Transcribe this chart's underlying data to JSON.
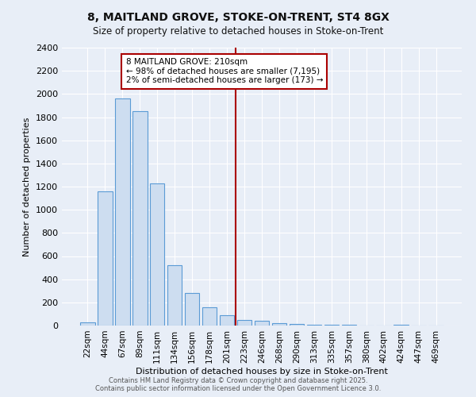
{
  "title1": "8, MAITLAND GROVE, STOKE-ON-TRENT, ST4 8GX",
  "title2": "Size of property relative to detached houses in Stoke-on-Trent",
  "xlabel": "Distribution of detached houses by size in Stoke-on-Trent",
  "ylabel": "Number of detached properties",
  "categories": [
    "22sqm",
    "44sqm",
    "67sqm",
    "89sqm",
    "111sqm",
    "134sqm",
    "156sqm",
    "178sqm",
    "201sqm",
    "223sqm",
    "246sqm",
    "268sqm",
    "290sqm",
    "313sqm",
    "335sqm",
    "357sqm",
    "380sqm",
    "402sqm",
    "424sqm",
    "447sqm",
    "469sqm"
  ],
  "values": [
    25,
    1160,
    1960,
    1850,
    1230,
    520,
    280,
    155,
    90,
    50,
    40,
    18,
    15,
    8,
    5,
    5,
    3,
    3,
    5,
    3,
    3
  ],
  "bar_color": "#cdddf0",
  "bar_edge_color": "#5b9bd5",
  "vline_x": 8.5,
  "vline_color": "#aa0000",
  "annotation_text": "8 MAITLAND GROVE: 210sqm\n← 98% of detached houses are smaller (7,195)\n2% of semi-detached houses are larger (173) →",
  "annotation_box_color": "#ffffff",
  "annotation_box_edge": "#aa0000",
  "ylim": [
    0,
    2400
  ],
  "yticks": [
    0,
    200,
    400,
    600,
    800,
    1000,
    1200,
    1400,
    1600,
    1800,
    2000,
    2200,
    2400
  ],
  "background_color": "#e8eef7",
  "grid_color": "#ffffff",
  "footer1": "Contains HM Land Registry data © Crown copyright and database right 2025.",
  "footer2": "Contains public sector information licensed under the Open Government Licence 3.0."
}
